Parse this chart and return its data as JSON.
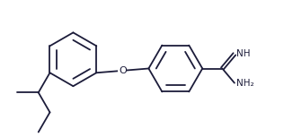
{
  "bg_color": "#ffffff",
  "line_color": "#1c1c3a",
  "line_width": 1.3,
  "font_size": 7.5,
  "figsize": [
    3.26,
    1.53
  ],
  "dpi": 100,
  "xlim": [
    0,
    9.5
  ],
  "ylim": [
    0,
    4.5
  ]
}
